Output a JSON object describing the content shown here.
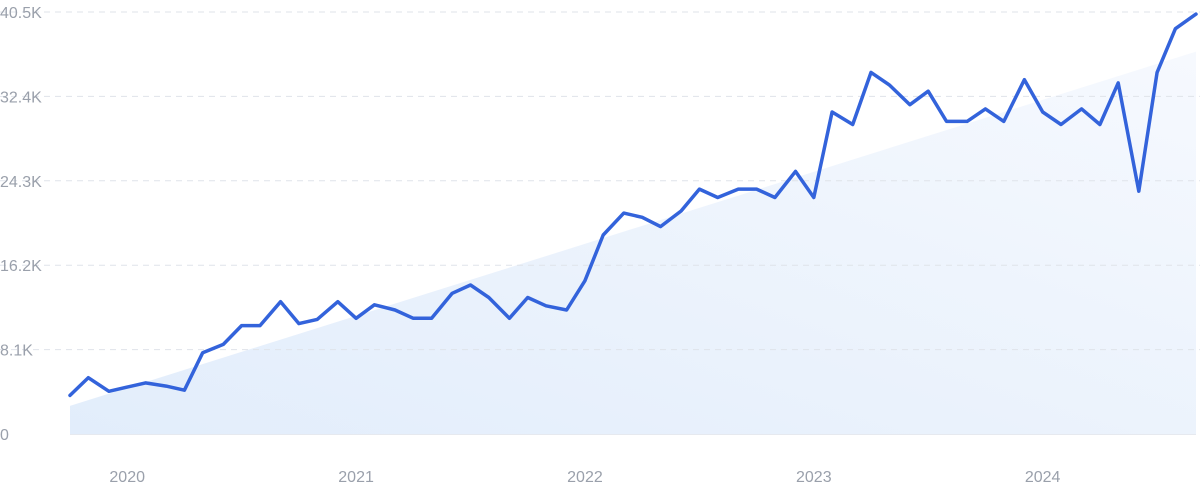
{
  "chart_data": {
    "type": "line",
    "title": "",
    "xlabel": "",
    "ylabel": "",
    "y_ticks": [
      {
        "value": 0,
        "label": "0"
      },
      {
        "value": 8100,
        "label": "8.1K"
      },
      {
        "value": 16200,
        "label": "16.2K"
      },
      {
        "value": 24300,
        "label": "24.3K"
      },
      {
        "value": 32400,
        "label": "32.4K"
      },
      {
        "value": 40500,
        "label": "40.5K"
      }
    ],
    "x_ticks": [
      {
        "value": 2020.0,
        "label": "2020"
      },
      {
        "value": 2021.0,
        "label": "2021"
      },
      {
        "value": 2022.0,
        "label": "2022"
      },
      {
        "value": 2023.0,
        "label": "2023"
      },
      {
        "value": 2024.0,
        "label": "2024"
      }
    ],
    "xlim": [
      2019.75,
      2024.67
    ],
    "ylim": [
      0,
      40500
    ],
    "grid": true,
    "legend": "none",
    "colors": {
      "line": "#3363db",
      "trend_fill": "#e6f0fc",
      "grid": "#dfe3ea",
      "tick_text": "#9aa0ab",
      "axis": "#e6e9ef"
    },
    "trend": {
      "x": [
        2019.75,
        2024.67
      ],
      "y": [
        2700,
        36700
      ]
    },
    "series": [
      {
        "x": [
          2019.75,
          2019.83,
          2019.92,
          2020.0,
          2020.08,
          2020.17,
          2020.25,
          2020.33,
          2020.42,
          2020.5,
          2020.58,
          2020.67,
          2020.75,
          2020.83,
          2020.92,
          2021.0,
          2021.08,
          2021.17,
          2021.25,
          2021.33,
          2021.42,
          2021.5,
          2021.58,
          2021.67,
          2021.75,
          2021.83,
          2021.92,
          2022.0,
          2022.08,
          2022.17,
          2022.25,
          2022.33,
          2022.42,
          2022.5,
          2022.58,
          2022.67,
          2022.75,
          2022.83,
          2022.92,
          2023.0,
          2023.08,
          2023.17,
          2023.25,
          2023.33,
          2023.42,
          2023.5,
          2023.58,
          2023.67,
          2023.75,
          2023.83,
          2023.92,
          2024.0,
          2024.08,
          2024.17,
          2024.25,
          2024.33,
          2024.42,
          2024.5,
          2024.58,
          2024.67
        ],
        "y": [
          3700,
          5400,
          4100,
          4500,
          4900,
          4600,
          4200,
          7800,
          8600,
          10400,
          10400,
          12700,
          10600,
          11000,
          12700,
          11100,
          12400,
          11900,
          11100,
          11100,
          13500,
          14300,
          13100,
          11100,
          13100,
          12300,
          11900,
          14700,
          19100,
          21200,
          20800,
          19900,
          21400,
          23500,
          22700,
          23500,
          23500,
          22700,
          25200,
          22700,
          30900,
          29700,
          34700,
          33500,
          31600,
          32900,
          30000,
          30000,
          31200,
          30000,
          34000,
          30900,
          29700,
          31200,
          29700,
          33700,
          23300,
          34700,
          38900,
          40300
        ]
      }
    ]
  }
}
